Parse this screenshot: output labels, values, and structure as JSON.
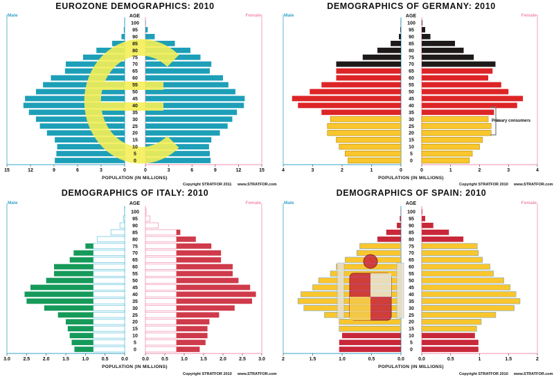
{
  "chart_data": [
    {
      "type": "bar",
      "title": "EUROZONE DEMOGRAPHICS: 2010",
      "age_label": "AGE",
      "male_label": "Male",
      "female_label": "Female",
      "xlabel": "POPULATION (IN MILLIONS)",
      "copyright": "Copyright STRATFOR 2011",
      "website": "www.STRATFOR.com",
      "xlim": [
        0,
        15
      ],
      "xticks": [
        "15",
        "12",
        "9",
        "6",
        "3",
        "0",
        "0",
        "3",
        "6",
        "9",
        "12",
        "15"
      ],
      "categories": [
        "0",
        "5",
        "10",
        "15",
        "20",
        "25",
        "30",
        "35",
        "40",
        "45",
        "50",
        "55",
        "60",
        "65",
        "70",
        "75",
        "80",
        "85",
        "90",
        "95",
        "100"
      ],
      "series": [
        {
          "name": "Male",
          "values": [
            8.9,
            8.7,
            8.6,
            8.9,
            9.9,
            10.8,
            11.3,
            12.2,
            12.9,
            12.7,
            11.3,
            10.4,
            9.4,
            7.6,
            7.5,
            5.3,
            3.6,
            1.6,
            0.4,
            0.1,
            0.02
          ]
        },
        {
          "name": "Female",
          "values": [
            8.4,
            8.3,
            8.2,
            8.5,
            9.6,
            10.6,
            11.2,
            11.8,
            12.7,
            12.8,
            11.6,
            10.7,
            10.0,
            8.3,
            8.5,
            7.1,
            5.8,
            3.8,
            1.2,
            0.3,
            0.05
          ]
        }
      ],
      "style": "teal-bars-euro-sign",
      "colors": {
        "male": "#1d9fb8",
        "female": "#1d9fb8",
        "overlay": "#f4ef57"
      }
    },
    {
      "type": "bar",
      "title": "DEMOGRAPHICS OF GERMANY: 2010",
      "age_label": "AGE",
      "male_label": "Male",
      "female_label": "Female",
      "xlabel": "POPULATION (IN MILLIONS)",
      "copyright": "Copyright STRATFOR 2010",
      "website": "www.STRATFOR.com",
      "xlim": [
        0,
        4
      ],
      "xticks": [
        "4",
        "3",
        "2",
        "1",
        "0",
        "0",
        "1",
        "2",
        "3",
        "4"
      ],
      "categories": [
        "0",
        "5",
        "10",
        "15",
        "20",
        "25",
        "30",
        "35",
        "40",
        "45",
        "50",
        "55",
        "60",
        "65",
        "70",
        "75",
        "80",
        "85",
        "90",
        "95",
        "100"
      ],
      "series": [
        {
          "name": "Male",
          "values": [
            1.8,
            1.9,
            2.1,
            2.2,
            2.5,
            2.5,
            2.4,
            2.7,
            3.5,
            3.7,
            3.1,
            2.7,
            2.2,
            2.2,
            2.2,
            1.3,
            0.8,
            0.35,
            0.07,
            0.02,
            0.005
          ]
        },
        {
          "name": "Female",
          "values": [
            1.65,
            1.75,
            2.0,
            2.1,
            2.4,
            2.4,
            2.3,
            2.5,
            3.3,
            3.5,
            3.0,
            2.75,
            2.3,
            2.45,
            2.55,
            1.8,
            1.45,
            1.15,
            0.3,
            0.12,
            0.02
          ]
        }
      ],
      "annotation": "Primary consumers",
      "style": "flag-colors",
      "colors": {
        "black": "#1e1a1a",
        "red": "#dd2527",
        "gold": "#f9c62d"
      }
    },
    {
      "type": "bar",
      "title": "DEMOGRAPHICS OF ITALY: 2010",
      "age_label": "AGE",
      "male_label": "Male",
      "female_label": "Female",
      "xlabel": "POPULATION (IN MILLIONS)",
      "copyright": "Copyright STRATFOR 2010",
      "website": "www.STRATFOR.com",
      "xlim": [
        0,
        3
      ],
      "xticks": [
        "3.0",
        "2.5",
        "2.0",
        "1.5",
        "1.0",
        "0.5",
        "0.0",
        "0.0",
        "0.5",
        "1.0",
        "1.5",
        "2.0",
        "2.5",
        "3.0"
      ],
      "categories": [
        "0",
        "5",
        "10",
        "15",
        "20",
        "25",
        "30",
        "35",
        "40",
        "45",
        "50",
        "55",
        "60",
        "65",
        "70",
        "75",
        "80",
        "85",
        "90",
        "95",
        "100"
      ],
      "series": [
        {
          "name": "Male",
          "values": [
            1.28,
            1.35,
            1.4,
            1.45,
            1.5,
            1.7,
            2.05,
            2.5,
            2.55,
            2.4,
            2.0,
            1.8,
            1.8,
            1.4,
            1.3,
            1.0,
            0.7,
            0.35,
            0.12,
            0.03,
            0.005
          ]
        },
        {
          "name": "Female",
          "values": [
            1.4,
            1.55,
            1.6,
            1.6,
            1.65,
            1.9,
            2.3,
            2.75,
            2.85,
            2.7,
            2.4,
            2.25,
            2.25,
            1.95,
            1.95,
            1.7,
            1.3,
            0.9,
            0.33,
            0.12,
            0.02
          ]
        }
      ],
      "style": "flag-colors",
      "colors": {
        "green": "#169a5a",
        "white": "#ffffff",
        "outline": "#7fcfe3",
        "red": "#cf3b4b",
        "white_outline": "#f2a6be"
      }
    },
    {
      "type": "bar",
      "title": "DEMOGRAPHICS OF SPAIN: 2010",
      "age_label": "AGE",
      "male_label": "Male",
      "female_label": "Female",
      "xlabel": "POPULATION (IN MILLIONS)",
      "copyright": "Copyright STRATFOR 2010",
      "website": "www.STRATFOR.com",
      "xlim": [
        0,
        2
      ],
      "xticks": [
        "2",
        "1.5",
        "1.0",
        "0.5",
        "0.0",
        "0.0",
        "0.5",
        "1",
        "1.5",
        "2"
      ],
      "categories": [
        "0",
        "5",
        "10",
        "15",
        "20",
        "25",
        "30",
        "35",
        "40",
        "45",
        "50",
        "55",
        "60",
        "65",
        "70",
        "75",
        "80",
        "85",
        "90",
        "95",
        "100"
      ],
      "series": [
        {
          "name": "Male",
          "values": [
            1.05,
            1.05,
            1.0,
            1.05,
            1.05,
            1.3,
            1.65,
            1.75,
            1.7,
            1.5,
            1.4,
            1.2,
            1.1,
            0.95,
            0.75,
            0.7,
            0.4,
            0.25,
            0.07,
            0.02,
            0.005
          ]
        },
        {
          "name": "Female",
          "values": [
            0.98,
            0.98,
            0.92,
            0.95,
            1.03,
            1.28,
            1.6,
            1.7,
            1.63,
            1.53,
            1.42,
            1.24,
            1.18,
            1.05,
            0.98,
            0.96,
            0.72,
            0.47,
            0.2,
            0.06,
            0.01
          ]
        }
      ],
      "style": "flag-colors",
      "colors": {
        "red": "#c8283a",
        "gold": "#f9c62d"
      }
    }
  ]
}
